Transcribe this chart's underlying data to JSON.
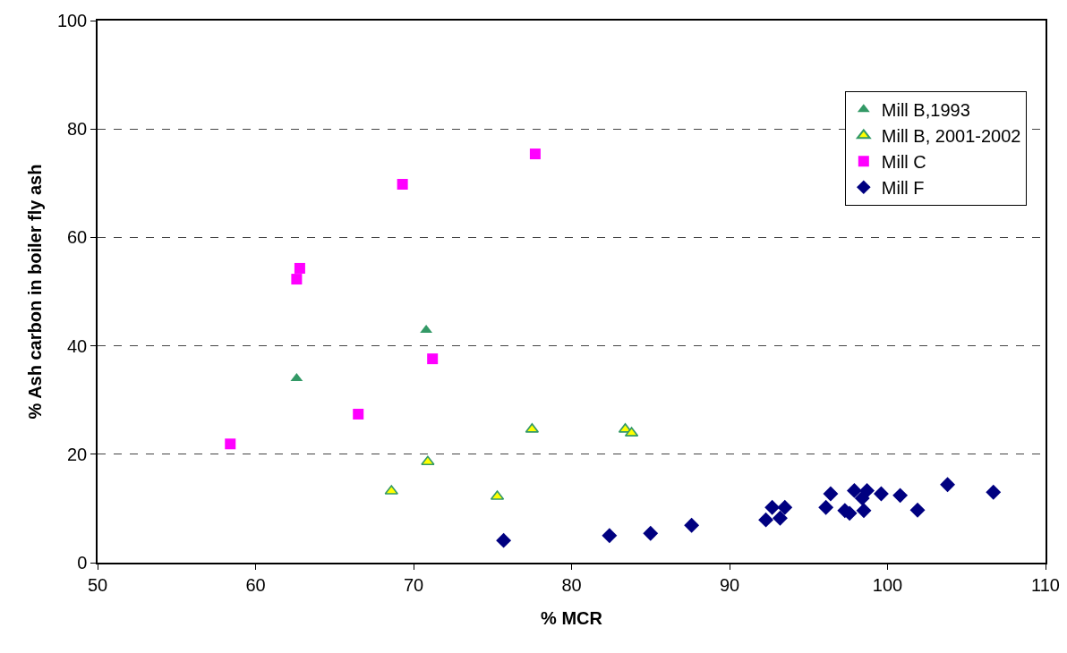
{
  "chart_data": {
    "type": "scatter",
    "xlabel": "% MCR",
    "ylabel": "% Ash carbon in boiler fly ash",
    "xlim": [
      50,
      110
    ],
    "xticks": [
      50,
      60,
      70,
      80,
      90,
      100,
      110
    ],
    "ylim": [
      0,
      100
    ],
    "yticks": [
      0,
      20,
      40,
      60,
      80,
      100
    ],
    "grid": "y",
    "legend": "top right",
    "series": [
      {
        "name": "Mill B,1993",
        "color": "#339966",
        "marker": "triangle",
        "x": [
          62.6,
          70.8
        ],
        "values": [
          34.0,
          42.9
        ]
      },
      {
        "name": "Mill B, 2001-2002",
        "color": "#ffff00",
        "marker": "triangle",
        "x": [
          68.6,
          70.9,
          75.3,
          77.5,
          83.4,
          83.8
        ],
        "values": [
          13.2,
          18.6,
          12.2,
          24.6,
          24.6,
          23.9
        ]
      },
      {
        "name": "Mill C",
        "color": "#ff00ff",
        "marker": "square",
        "x": [
          58.4,
          62.6,
          62.8,
          66.5,
          69.3,
          71.2,
          77.7
        ],
        "values": [
          21.9,
          52.3,
          54.3,
          27.4,
          69.8,
          37.6,
          75.4
        ]
      },
      {
        "name": "Mill F",
        "color": "#000080",
        "marker": "diamond",
        "x": [
          75.7,
          82.4,
          85.0,
          87.6,
          92.3,
          92.7,
          93.2,
          93.5,
          96.1,
          96.4,
          97.3,
          97.6,
          97.9,
          98.4,
          98.5,
          98.7,
          99.6,
          100.8,
          101.9,
          103.8,
          106.7
        ],
        "values": [
          4.1,
          5.0,
          5.4,
          6.9,
          7.9,
          10.2,
          8.2,
          10.2,
          10.2,
          12.7,
          9.6,
          9.1,
          13.3,
          11.9,
          9.6,
          13.3,
          12.7,
          12.4,
          9.7,
          14.4,
          13.0
        ]
      }
    ]
  }
}
